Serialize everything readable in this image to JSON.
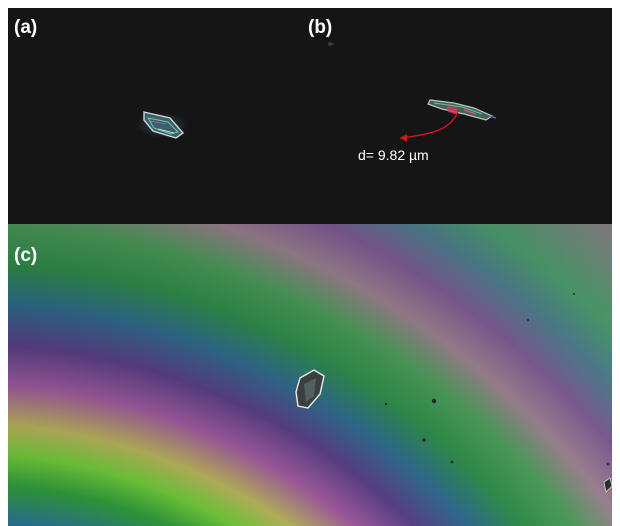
{
  "figure": {
    "panels": [
      {
        "id": "a",
        "label": "(a)"
      },
      {
        "id": "b",
        "label": "(b)",
        "measurement": "d= 9.82 µm"
      },
      {
        "id": "c",
        "label": "(c)"
      }
    ]
  },
  "colors": {
    "dark_background": "#151515",
    "label_text": "#ffffff",
    "measurement_arrow": "#d8141c",
    "fringe_purple": "#5a3d7e",
    "fringe_green": "#2f9a3a",
    "fringe_yellow": "#d6b35c"
  }
}
